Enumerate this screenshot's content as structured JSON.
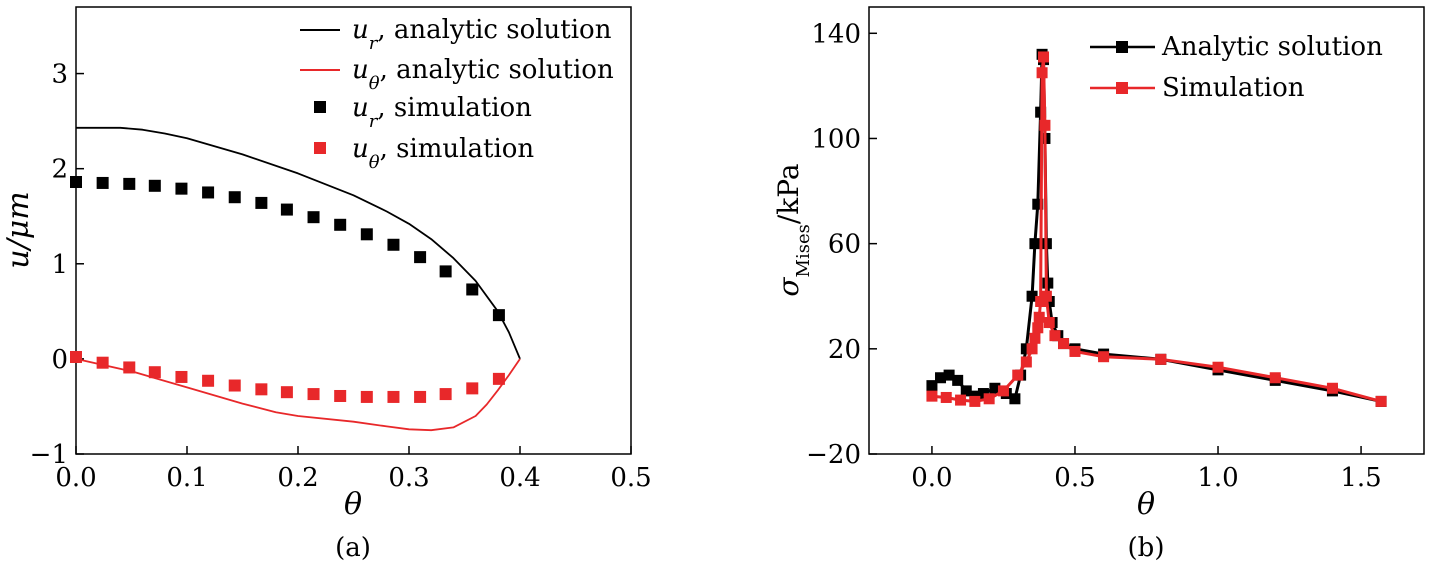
{
  "chart_data": [
    {
      "type": "line",
      "caption": "(a)",
      "xlabel": "θ",
      "ylabel": "u/μm",
      "xlim": [
        0,
        0.5
      ],
      "ylim": [
        -1,
        3.7
      ],
      "xticks": [
        0,
        0.1,
        0.2,
        0.3,
        0.4,
        0.5
      ],
      "xtick_labels": [
        "0.0",
        "0.1",
        "0.2",
        "0.3",
        "0.4",
        "0.5"
      ],
      "yticks": [
        -1,
        0,
        1,
        2,
        3
      ],
      "ytick_labels": [
        "−1",
        "0",
        "1",
        "2",
        "3"
      ],
      "legend_position": "top-right",
      "series": [
        {
          "name": "u_r, analytic solution",
          "legend_sym": "u",
          "legend_sub": "r",
          "legend_rest": ", analytic solution",
          "style": "line",
          "color": "#000000",
          "x": [
            0,
            0.02,
            0.04,
            0.06,
            0.08,
            0.1,
            0.15,
            0.2,
            0.25,
            0.28,
            0.3,
            0.32,
            0.34,
            0.36,
            0.38,
            0.39,
            0.4
          ],
          "y": [
            2.43,
            2.43,
            2.43,
            2.41,
            2.37,
            2.32,
            2.15,
            1.95,
            1.72,
            1.55,
            1.42,
            1.26,
            1.06,
            0.82,
            0.5,
            0.28,
            0.0
          ]
        },
        {
          "name": "u_θ, analytic solution",
          "legend_sym": "u",
          "legend_sub": "θ",
          "legend_rest": ", analytic solution",
          "style": "line",
          "color": "#e8282a",
          "x": [
            0,
            0.05,
            0.1,
            0.15,
            0.18,
            0.2,
            0.25,
            0.28,
            0.3,
            0.32,
            0.34,
            0.36,
            0.37,
            0.38,
            0.39,
            0.4
          ],
          "y": [
            0.0,
            -0.13,
            -0.3,
            -0.47,
            -0.56,
            -0.6,
            -0.66,
            -0.71,
            -0.74,
            -0.75,
            -0.72,
            -0.6,
            -0.48,
            -0.33,
            -0.17,
            0.0
          ]
        },
        {
          "name": "u_r, simulation",
          "legend_sym": "u",
          "legend_sub": "r",
          "legend_rest": ", simulation",
          "style": "marker",
          "color": "#000000",
          "x": [
            0,
            0.024,
            0.048,
            0.071,
            0.095,
            0.119,
            0.143,
            0.167,
            0.19,
            0.214,
            0.238,
            0.262,
            0.286,
            0.31,
            0.333,
            0.357,
            0.381
          ],
          "y": [
            1.86,
            1.85,
            1.84,
            1.82,
            1.79,
            1.75,
            1.7,
            1.64,
            1.57,
            1.49,
            1.41,
            1.31,
            1.2,
            1.07,
            0.92,
            0.73,
            0.46
          ]
        },
        {
          "name": "u_θ, simulation",
          "legend_sym": "u",
          "legend_sub": "θ",
          "legend_rest": ", simulation",
          "style": "marker",
          "color": "#e8282a",
          "x": [
            0,
            0.024,
            0.048,
            0.071,
            0.095,
            0.119,
            0.143,
            0.167,
            0.19,
            0.214,
            0.238,
            0.262,
            0.286,
            0.31,
            0.333,
            0.357,
            0.381
          ],
          "y": [
            0.02,
            -0.04,
            -0.09,
            -0.14,
            -0.19,
            -0.23,
            -0.28,
            -0.32,
            -0.35,
            -0.37,
            -0.39,
            -0.4,
            -0.4,
            -0.4,
            -0.37,
            -0.31,
            -0.21
          ]
        }
      ]
    },
    {
      "type": "line",
      "caption": "(b)",
      "xlabel": "θ",
      "ylabel_sym": "σ",
      "ylabel_sub": "Mises",
      "ylabel_rest": "/kPa",
      "xlim": [
        -0.22,
        1.72
      ],
      "ylim": [
        -20,
        150
      ],
      "xticks": [
        0,
        0.5,
        1.0,
        1.5
      ],
      "xtick_labels": [
        "0.0",
        "0.5",
        "1.0",
        "1.5"
      ],
      "yticks": [
        -20,
        20,
        60,
        100,
        140
      ],
      "ytick_labels": [
        "−20",
        "20",
        "60",
        "100",
        "140"
      ],
      "legend_position": "top-right",
      "series": [
        {
          "name": "Analytic solution",
          "style": "line+marker",
          "color": "#000000",
          "x": [
            0,
            0.03,
            0.06,
            0.09,
            0.12,
            0.15,
            0.18,
            0.22,
            0.26,
            0.29,
            0.31,
            0.33,
            0.35,
            0.36,
            0.37,
            0.38,
            0.385,
            0.39,
            0.395,
            0.4,
            0.405,
            0.41,
            0.42,
            0.44,
            0.46,
            0.5,
            0.6,
            0.8,
            1.0,
            1.2,
            1.4,
            1.57
          ],
          "y": [
            6,
            9,
            10,
            8,
            4,
            2,
            3,
            5,
            3,
            1,
            10,
            20,
            40,
            60,
            75,
            110,
            132,
            130,
            100,
            60,
            45,
            38,
            30,
            25,
            22,
            20,
            18,
            16,
            12,
            8,
            4,
            0
          ],
          "legend_label": "Analytic solution"
        },
        {
          "name": "Simulation",
          "style": "line+marker",
          "color": "#e8282a",
          "x": [
            0,
            0.05,
            0.1,
            0.15,
            0.2,
            0.25,
            0.3,
            0.33,
            0.35,
            0.36,
            0.37,
            0.375,
            0.38,
            0.385,
            0.39,
            0.395,
            0.4,
            0.41,
            0.43,
            0.46,
            0.5,
            0.6,
            0.8,
            1.0,
            1.2,
            1.4,
            1.57
          ],
          "y": [
            2,
            1.5,
            0.5,
            0,
            1,
            4,
            10,
            15,
            20,
            24,
            28,
            32,
            38,
            125,
            131,
            105,
            40,
            30,
            25,
            22,
            19,
            17,
            16,
            13,
            9,
            5,
            0
          ],
          "legend_label": "Simulation"
        }
      ]
    }
  ]
}
